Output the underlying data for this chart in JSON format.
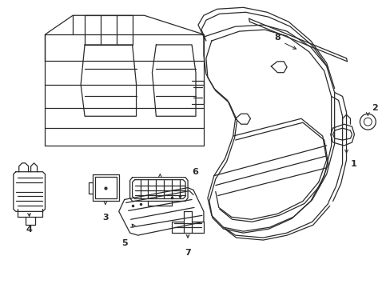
{
  "background_color": "#ffffff",
  "line_color": "#2a2a2a",
  "label_color": "#000000",
  "lw": 0.9
}
